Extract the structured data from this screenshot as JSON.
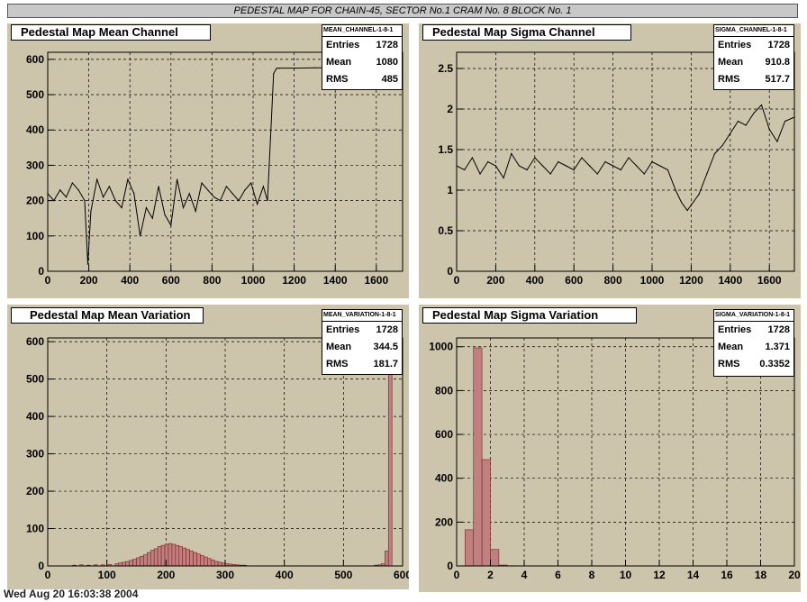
{
  "page_title": "PEDESTAL MAP FOR CHAIN-45, SECTOR No.1 CRAM No. 8 BLOCK No. 1",
  "footer_text": "Wed Aug 20 16:03:38 2004",
  "colors": {
    "pad_bg": "#cdc4ac",
    "hist_fill": "#c08080",
    "hist_line": "#7a2020"
  },
  "panels": [
    {
      "title": "Pedestal Map Mean Channel",
      "stats": {
        "name": "MEAN_CHANNEL-1-8-1",
        "entries_label": "Entries",
        "entries": "1728",
        "mean_label": "Mean",
        "mean": "1080",
        "rms_label": "RMS",
        "rms": "485"
      }
    },
    {
      "title": "Pedestal Map Sigma Channel",
      "stats": {
        "name": "SIGMA_CHANNEL-1-8-1",
        "entries_label": "Entries",
        "entries": "1728",
        "mean_label": "Mean",
        "mean": "910.8",
        "rms_label": "RMS",
        "rms": "517.7"
      }
    },
    {
      "title": "Pedestal Map Mean Variation",
      "stats": {
        "name": "MEAN_VARIATION-1-8-1",
        "entries_label": "Entries",
        "entries": "1728",
        "mean_label": "Mean",
        "mean": "344.5",
        "rms_label": "RMS",
        "rms": "181.7"
      }
    },
    {
      "title": "Pedestal Map Sigma Variation",
      "stats": {
        "name": "SIGMA_VARIATION-1-8-1",
        "entries_label": "Entries",
        "entries": "1728",
        "mean_label": "Mean",
        "mean": "1.371",
        "rms_label": "RMS",
        "rms": "0.3352"
      }
    }
  ],
  "chart_data": [
    {
      "type": "line",
      "title": "Pedestal Map Mean Channel",
      "xlim": [
        0,
        1728
      ],
      "ylim": [
        0,
        620
      ],
      "xticks": [
        0,
        200,
        400,
        600,
        800,
        1000,
        1200,
        1400,
        1600
      ],
      "yticks": [
        0,
        100,
        200,
        300,
        400,
        500,
        600
      ],
      "grid": true,
      "x": [
        0,
        30,
        60,
        90,
        120,
        150,
        180,
        195,
        210,
        240,
        270,
        300,
        330,
        360,
        390,
        420,
        450,
        480,
        510,
        540,
        570,
        600,
        630,
        660,
        690,
        720,
        750,
        780,
        810,
        840,
        870,
        900,
        930,
        960,
        990,
        1020,
        1050,
        1070,
        1085,
        1100,
        1115,
        1130,
        1200,
        1300,
        1400,
        1500,
        1600,
        1728
      ],
      "y": [
        220,
        200,
        230,
        210,
        250,
        230,
        200,
        20,
        170,
        260,
        210,
        240,
        200,
        180,
        260,
        220,
        100,
        180,
        150,
        240,
        160,
        130,
        260,
        180,
        220,
        170,
        250,
        230,
        210,
        200,
        240,
        220,
        200,
        230,
        250,
        190,
        240,
        200,
        380,
        560,
        575,
        575,
        575,
        576,
        576,
        576,
        576,
        576
      ]
    },
    {
      "type": "line",
      "title": "Pedestal Map Sigma Channel",
      "xlim": [
        0,
        1728
      ],
      "ylim": [
        0,
        2.7
      ],
      "xticks": [
        0,
        200,
        400,
        600,
        800,
        1000,
        1200,
        1400,
        1600
      ],
      "yticks": [
        0,
        0.5,
        1,
        1.5,
        2,
        2.5
      ],
      "grid": true,
      "x": [
        0,
        40,
        80,
        120,
        160,
        200,
        240,
        280,
        320,
        360,
        400,
        440,
        480,
        520,
        560,
        600,
        640,
        680,
        720,
        760,
        800,
        840,
        880,
        920,
        960,
        1000,
        1040,
        1080,
        1120,
        1150,
        1180,
        1210,
        1240,
        1280,
        1320,
        1360,
        1400,
        1440,
        1480,
        1520,
        1560,
        1600,
        1640,
        1680,
        1728
      ],
      "y": [
        1.3,
        1.25,
        1.4,
        1.2,
        1.35,
        1.3,
        1.15,
        1.45,
        1.3,
        1.25,
        1.4,
        1.3,
        1.2,
        1.35,
        1.3,
        1.25,
        1.4,
        1.3,
        1.2,
        1.35,
        1.3,
        1.25,
        1.4,
        1.3,
        1.2,
        1.35,
        1.3,
        1.25,
        1.0,
        0.85,
        0.75,
        0.85,
        0.95,
        1.2,
        1.45,
        1.55,
        1.7,
        1.85,
        1.8,
        1.95,
        2.05,
        1.75,
        1.6,
        1.85,
        1.9
      ]
    },
    {
      "type": "bar",
      "title": "Pedestal Map Mean Variation",
      "xlim": [
        0,
        600
      ],
      "ylim": [
        0,
        610
      ],
      "xticks": [
        0,
        100,
        200,
        300,
        400,
        500,
        600
      ],
      "yticks": [
        0,
        100,
        200,
        300,
        400,
        500,
        600
      ],
      "grid": true,
      "bin_width": 6,
      "bins_x": [
        42,
        54,
        66,
        78,
        90,
        102,
        114,
        120,
        126,
        132,
        138,
        144,
        150,
        156,
        162,
        168,
        174,
        180,
        186,
        192,
        198,
        204,
        210,
        216,
        222,
        228,
        234,
        240,
        246,
        252,
        258,
        264,
        270,
        276,
        282,
        288,
        294,
        300,
        306,
        312,
        318,
        324,
        330,
        552,
        558,
        564,
        570,
        576
      ],
      "values": [
        2,
        3,
        2,
        3,
        3,
        4,
        6,
        8,
        10,
        12,
        15,
        18,
        22,
        26,
        30,
        36,
        42,
        46,
        52,
        55,
        58,
        60,
        58,
        55,
        52,
        48,
        44,
        40,
        36,
        32,
        28,
        24,
        20,
        16,
        12,
        10,
        8,
        6,
        5,
        4,
        3,
        2,
        2,
        2,
        3,
        6,
        40,
        520
      ]
    },
    {
      "type": "bar",
      "title": "Pedestal Map Sigma Variation",
      "xlim": [
        0,
        20
      ],
      "ylim": [
        0,
        1040
      ],
      "xticks": [
        0,
        2,
        4,
        6,
        8,
        10,
        12,
        14,
        16,
        18,
        20
      ],
      "yticks": [
        0,
        200,
        400,
        600,
        800,
        1000
      ],
      "grid": true,
      "bin_width": 0.5,
      "bins_x": [
        0.5,
        1.0,
        1.5,
        2.0,
        2.5,
        3.0
      ],
      "values": [
        165,
        995,
        485,
        75,
        4,
        1
      ]
    }
  ]
}
